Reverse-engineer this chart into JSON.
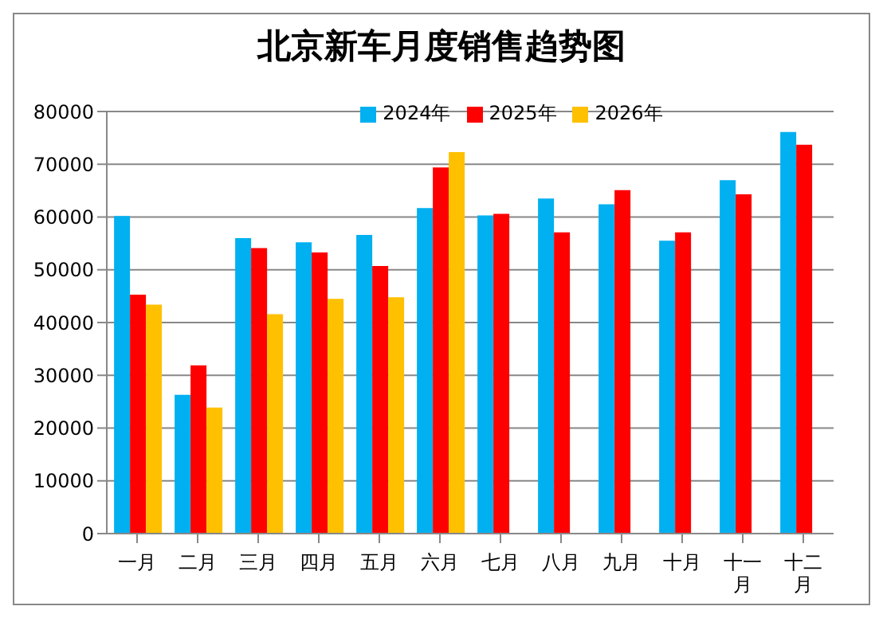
{
  "chart_data": {
    "type": "bar",
    "title": "北京新车月度销售趋势图",
    "categories": [
      "一月",
      "二月",
      "三月",
      "四月",
      "五月",
      "六月",
      "七月",
      "八月",
      "九月",
      "十月",
      "十一月",
      "十二月"
    ],
    "series": [
      {
        "name": "2024年",
        "color": "#00b0f0",
        "values": [
          60200,
          26300,
          56000,
          55200,
          56600,
          61700,
          60300,
          63500,
          62400,
          55500,
          67000,
          76100
        ]
      },
      {
        "name": "2025年",
        "color": "#ff0000",
        "values": [
          45300,
          31900,
          54100,
          53300,
          50700,
          69400,
          60600,
          57100,
          65100,
          57100,
          64300,
          73700
        ]
      },
      {
        "name": "2026年",
        "color": "#ffc000",
        "values": [
          43400,
          23900,
          41600,
          44500,
          44800,
          72300,
          null,
          null,
          null,
          null,
          null,
          null
        ]
      }
    ],
    "ylim": [
      0,
      80000
    ],
    "yticks": [
      0,
      10000,
      20000,
      30000,
      40000,
      50000,
      60000,
      70000,
      80000
    ],
    "grid": "y",
    "legend": "top"
  }
}
